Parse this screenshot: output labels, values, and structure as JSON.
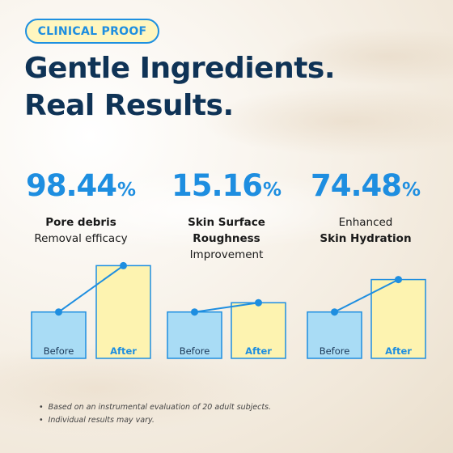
{
  "badge": "CLINICAL PROOF",
  "headline": {
    "line1": "Gentle Ingredients.",
    "line2": "Real Results."
  },
  "stats": [
    {
      "value": "98.44",
      "unit": "%",
      "label_lines": [
        {
          "text": "Pore debris",
          "bold": true
        },
        {
          "text": "Removal efficacy",
          "bold": false
        }
      ]
    },
    {
      "value": "15.16",
      "unit": "%",
      "label_lines": [
        {
          "text": "Skin Surface",
          "bold": true
        },
        {
          "text": "Roughness",
          "bold": true
        },
        {
          "text": "Improvement",
          "bold": false
        }
      ]
    },
    {
      "value": "74.48",
      "unit": "%",
      "label_lines": [
        {
          "text": "Enhanced",
          "bold": false
        },
        {
          "text": "Skin Hydration",
          "bold": true
        }
      ]
    }
  ],
  "chart_data": [
    {
      "type": "bar",
      "categories": [
        "Before",
        "After"
      ],
      "values": [
        0.3,
        0.6
      ],
      "colors": [
        "#a9dcf5",
        "#fdf3b0"
      ]
    },
    {
      "type": "bar",
      "categories": [
        "Before",
        "After"
      ],
      "values": [
        0.3,
        0.36
      ],
      "colors": [
        "#a9dcf5",
        "#fdf3b0"
      ]
    },
    {
      "type": "bar",
      "categories": [
        "Before",
        "After"
      ],
      "values": [
        0.3,
        0.51
      ],
      "colors": [
        "#a9dcf5",
        "#fdf3b0"
      ]
    }
  ],
  "notes": [
    "Based on an instrumental evaluation of 20 adult subjects.",
    "Individual results may vary."
  ],
  "colors": {
    "accent": "#1e8ee0",
    "navy": "#0f3356",
    "before_fill": "#a9dcf5",
    "after_fill": "#fdf3b0"
  }
}
